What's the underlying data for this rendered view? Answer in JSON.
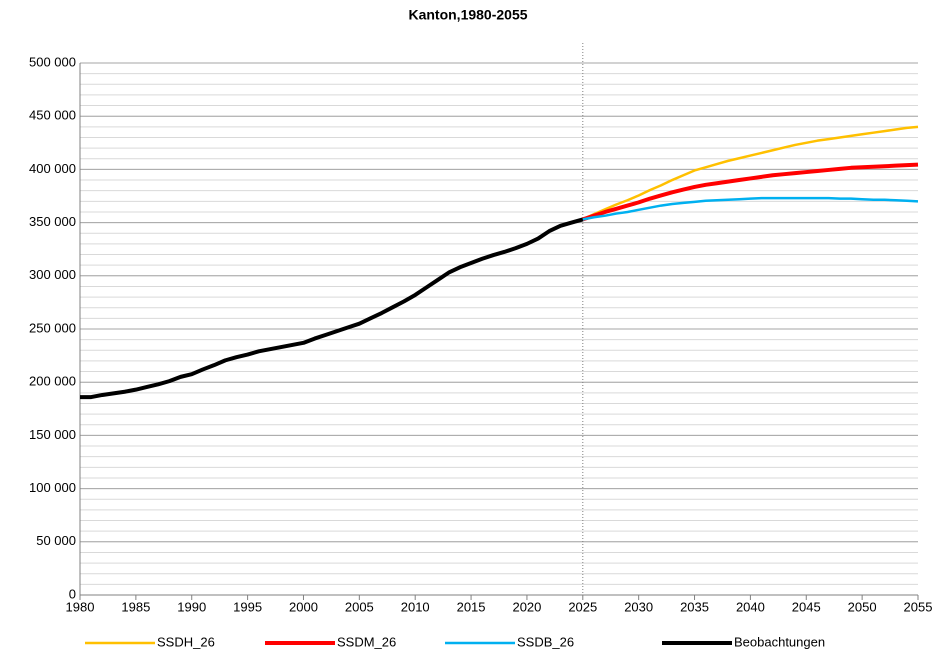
{
  "chart_data": {
    "type": "line",
    "title": "Kanton,1980-2055",
    "x": [
      1980,
      1981,
      1982,
      1983,
      1984,
      1985,
      1986,
      1987,
      1988,
      1989,
      1990,
      1991,
      1992,
      1993,
      1994,
      1995,
      1996,
      1997,
      1998,
      1999,
      2000,
      2001,
      2002,
      2003,
      2004,
      2005,
      2006,
      2007,
      2008,
      2009,
      2010,
      2011,
      2012,
      2013,
      2014,
      2015,
      2016,
      2017,
      2018,
      2019,
      2020,
      2021,
      2022,
      2023,
      2024,
      2025,
      2026,
      2027,
      2028,
      2029,
      2030,
      2031,
      2032,
      2033,
      2034,
      2035,
      2036,
      2037,
      2038,
      2039,
      2040,
      2041,
      2042,
      2043,
      2044,
      2045,
      2046,
      2047,
      2048,
      2049,
      2050,
      2051,
      2052,
      2053,
      2054,
      2055
    ],
    "series": [
      {
        "name": "SSDH_26",
        "color": "#ffc000",
        "width": 2.5,
        "values": [
          null,
          null,
          null,
          null,
          null,
          null,
          null,
          null,
          null,
          null,
          null,
          null,
          null,
          null,
          null,
          null,
          null,
          null,
          null,
          null,
          null,
          null,
          null,
          null,
          null,
          null,
          null,
          null,
          null,
          null,
          null,
          null,
          null,
          null,
          null,
          null,
          null,
          null,
          null,
          null,
          null,
          null,
          null,
          null,
          null,
          353000,
          358000,
          362500,
          367000,
          371000,
          375500,
          380500,
          385000,
          390000,
          394500,
          399000,
          402000,
          405000,
          408000,
          410500,
          413000,
          415500,
          418000,
          420500,
          423000,
          425000,
          427000,
          428500,
          430000,
          431500,
          433000,
          434500,
          436000,
          437500,
          439000,
          440000
        ]
      },
      {
        "name": "SSDM_26",
        "color": "#ff0000",
        "width": 4,
        "values": [
          null,
          null,
          null,
          null,
          null,
          null,
          null,
          null,
          null,
          null,
          null,
          null,
          null,
          null,
          null,
          null,
          null,
          null,
          null,
          null,
          null,
          null,
          null,
          null,
          null,
          null,
          null,
          null,
          null,
          null,
          null,
          null,
          null,
          null,
          null,
          null,
          null,
          null,
          null,
          null,
          null,
          null,
          null,
          null,
          null,
          353000,
          356500,
          360000,
          363000,
          366000,
          369000,
          372500,
          375500,
          378500,
          381000,
          383500,
          385500,
          387000,
          388500,
          390000,
          391500,
          393000,
          394500,
          395500,
          396500,
          397500,
          398500,
          399500,
          400500,
          401500,
          402000,
          402500,
          403000,
          403500,
          404000,
          404500
        ]
      },
      {
        "name": "SSDB_26",
        "color": "#00b0f0",
        "width": 2.5,
        "values": [
          null,
          null,
          null,
          null,
          null,
          null,
          null,
          null,
          null,
          null,
          null,
          null,
          null,
          null,
          null,
          null,
          null,
          null,
          null,
          null,
          null,
          null,
          null,
          null,
          null,
          null,
          null,
          null,
          null,
          null,
          null,
          null,
          null,
          null,
          null,
          null,
          null,
          null,
          null,
          null,
          null,
          null,
          null,
          null,
          null,
          353000,
          355000,
          356500,
          358500,
          360000,
          362000,
          364000,
          366000,
          367500,
          368500,
          369500,
          370500,
          371000,
          371500,
          372000,
          372500,
          373000,
          373000,
          373000,
          373000,
          373000,
          373000,
          373000,
          372500,
          372500,
          372000,
          371500,
          371500,
          371000,
          370500,
          370000
        ]
      },
      {
        "name": "Beobachtungen",
        "color": "#000000",
        "width": 4,
        "values": [
          186000,
          186000,
          188000,
          189500,
          191000,
          193000,
          195500,
          198000,
          201000,
          205000,
          207500,
          212000,
          216000,
          220500,
          223500,
          226000,
          229000,
          231000,
          233000,
          235000,
          237000,
          241000,
          244500,
          248000,
          251500,
          255000,
          260000,
          265000,
          270500,
          276000,
          282000,
          289000,
          296000,
          303000,
          308000,
          312000,
          316000,
          319500,
          322500,
          326000,
          330000,
          335000,
          342000,
          347000,
          350000,
          353000,
          null,
          null,
          null,
          null,
          null,
          null,
          null,
          null,
          null,
          null,
          null,
          null,
          null,
          null,
          null,
          null,
          null,
          null,
          null,
          null,
          null,
          null,
          null,
          null,
          null,
          null,
          null,
          null,
          null,
          null
        ]
      }
    ],
    "xlim": [
      1980,
      2055
    ],
    "xticks": [
      1980,
      1985,
      1990,
      1995,
      2000,
      2005,
      2010,
      2015,
      2020,
      2025,
      2030,
      2035,
      2040,
      2045,
      2050,
      2055
    ],
    "ylim": [
      0,
      500000
    ],
    "yticks": [
      0,
      {
        "value": 50000,
        "label": "50 000"
      },
      {
        "value": 100000,
        "label": "100 000"
      },
      {
        "value": 150000,
        "label": "150 000"
      },
      {
        "value": 200000,
        "label": "200 000"
      },
      {
        "value": 250000,
        "label": "250 000"
      },
      {
        "value": 300000,
        "label": "300 000"
      },
      {
        "value": 350000,
        "label": "350 000"
      },
      {
        "value": 400000,
        "label": "400 000"
      },
      {
        "value": 450000,
        "label": "450 000"
      },
      {
        "value": 500000,
        "label": "500 000"
      }
    ],
    "minor_grid_step": 10000,
    "grid": true,
    "vline_x": 2025,
    "legend": "bottom"
  }
}
